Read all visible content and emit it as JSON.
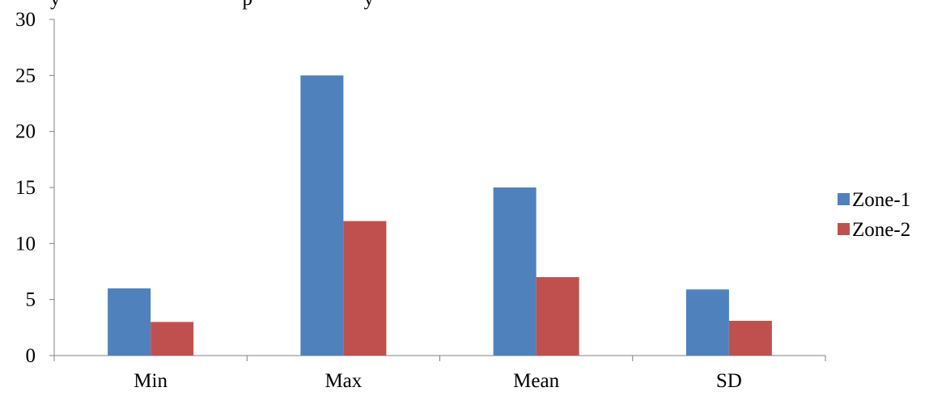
{
  "chart_data": {
    "type": "bar",
    "title_fragment": "y                                    p                      y",
    "categories": [
      "Min",
      "Max",
      "Mean",
      "SD"
    ],
    "series": [
      {
        "name": "Zone-1",
        "values": [
          6,
          25,
          15,
          5.9
        ]
      },
      {
        "name": "Zone-2",
        "values": [
          3,
          12,
          7,
          3.1
        ]
      }
    ],
    "ylim": [
      0,
      30
    ],
    "yticks": [
      0,
      5,
      10,
      15,
      20,
      25,
      30
    ],
    "xlabel": "",
    "ylabel": "",
    "grid": false,
    "legend_position": "right"
  },
  "colors": {
    "Zone-1": "#4F81BD",
    "Zone-2": "#C0504D",
    "axis": "#808080",
    "text": "#000000"
  }
}
